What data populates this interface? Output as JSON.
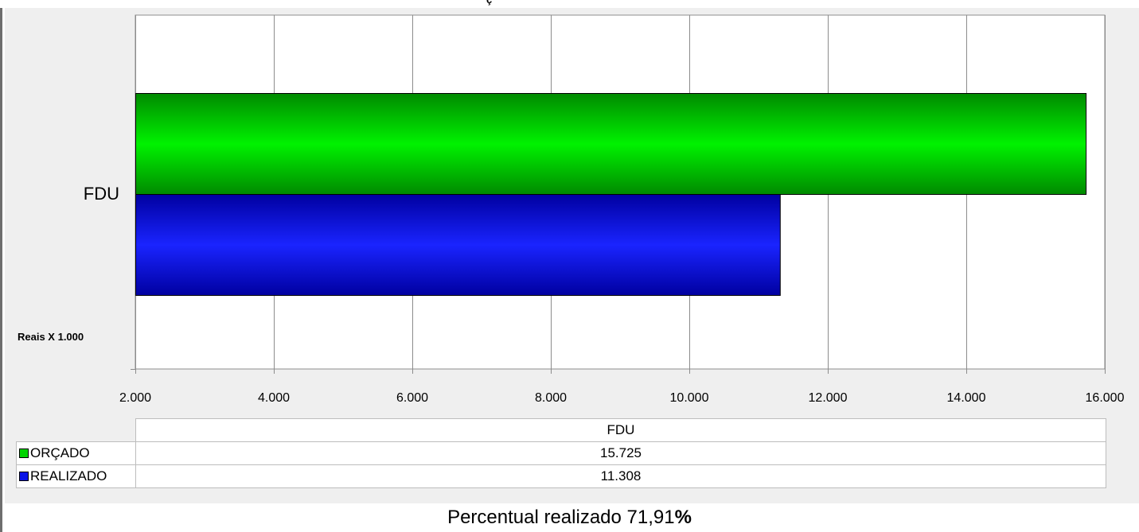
{
  "chart_data": {
    "type": "bar",
    "orientation": "horizontal",
    "categories": [
      "FDU"
    ],
    "series": [
      {
        "name": "ORÇADO",
        "values": [
          15725
        ],
        "color": "#00d400"
      },
      {
        "name": "REALIZADO",
        "values": [
          11308
        ],
        "color": "#0a14e6"
      }
    ],
    "xlim": [
      2000,
      16000
    ],
    "x_ticks": [
      "2.000",
      "4.000",
      "6.000",
      "8.000",
      "10.000",
      "12.000",
      "14.000",
      "16.000"
    ],
    "x_tick_values": [
      2000,
      4000,
      6000,
      8000,
      10000,
      12000,
      14000,
      16000
    ],
    "grid": true,
    "unit_label": "Reais X 1.000",
    "data_table": {
      "header": "FDU",
      "rows": [
        {
          "label": "ORÇADO",
          "value": "15.725",
          "color": "#00d400"
        },
        {
          "label": "REALIZADO",
          "value": "11.308",
          "color": "#0a14e6"
        }
      ]
    }
  },
  "footer": {
    "text": "Percentual realizado 71,91",
    "percent_sign": "%"
  }
}
